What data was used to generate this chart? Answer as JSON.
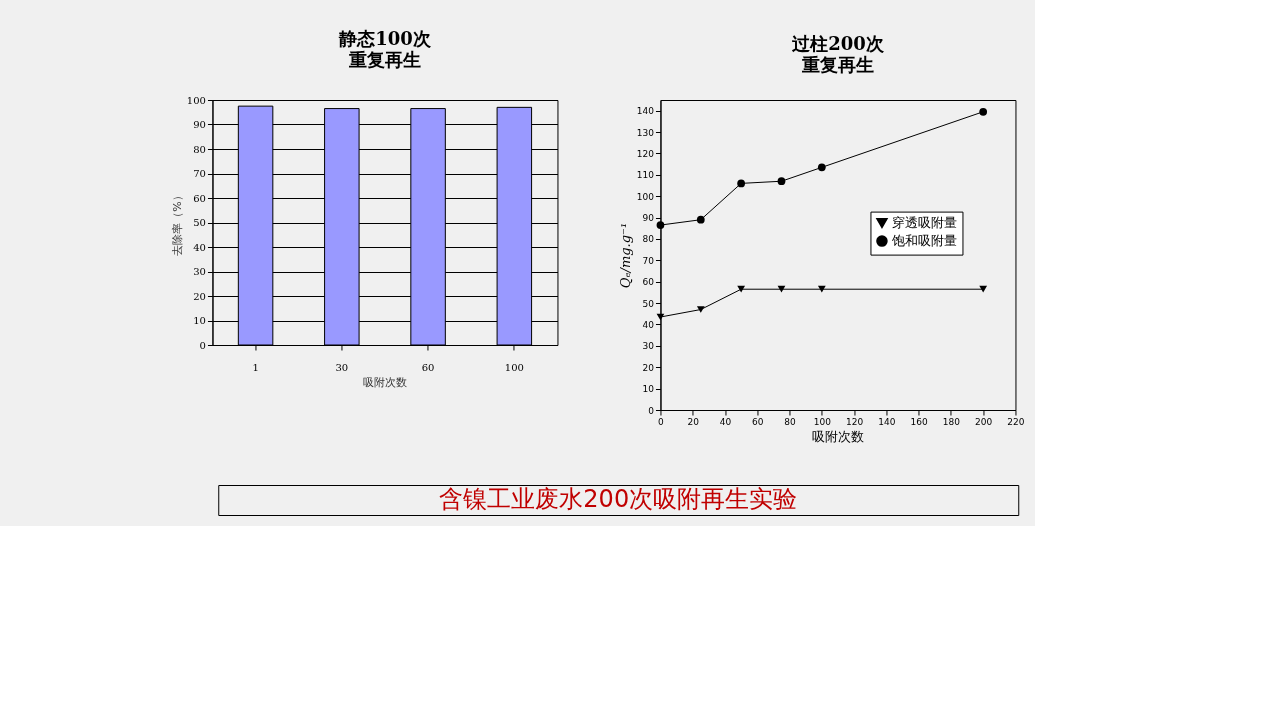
{
  "chart_data": [
    {
      "type": "bar",
      "title": "静态100次",
      "subtitle": "重复再生",
      "xlabel": "吸附次数",
      "ylabel": "去除率（%）",
      "categories": [
        "1",
        "30",
        "60",
        "100"
      ],
      "values": [
        97.5,
        96.5,
        96.5,
        97
      ],
      "color": "#9999ff",
      "ylim": [
        0,
        100
      ],
      "yticks": [
        0,
        10,
        20,
        30,
        40,
        50,
        60,
        70,
        80,
        90,
        100
      ],
      "grid": "y",
      "annotations": [
        "含镍工业废水200次吸附再生实验"
      ]
    },
    {
      "type": "line",
      "title": "过柱200次",
      "subtitle": "重复再生",
      "xlabel": "吸附次数",
      "ylabel": "Qₑ/mg.g⁻¹",
      "x": [
        0,
        25,
        50,
        75,
        100,
        200
      ],
      "series": [
        {
          "name": "穿透吸附量",
          "color": "#000000",
          "marker": "triangle-down",
          "values": [
            43.5,
            47,
            56.5,
            56.5,
            56.5,
            56.5
          ]
        },
        {
          "name": "饱和吸附量",
          "color": "#000000",
          "marker": "circle",
          "values": [
            86.5,
            89,
            106,
            107,
            113.5,
            139.5
          ]
        }
      ],
      "xlim": [
        0,
        220
      ],
      "xticks": [
        0,
        20,
        40,
        60,
        80,
        100,
        120,
        140,
        160,
        180,
        200,
        220
      ],
      "ylim": [
        0,
        145
      ],
      "yticks": [
        0,
        10,
        20,
        30,
        40,
        50,
        60,
        70,
        80,
        90,
        100,
        110,
        120,
        130,
        140
      ],
      "grid": false,
      "legend": "right",
      "line_style": "solid"
    }
  ]
}
